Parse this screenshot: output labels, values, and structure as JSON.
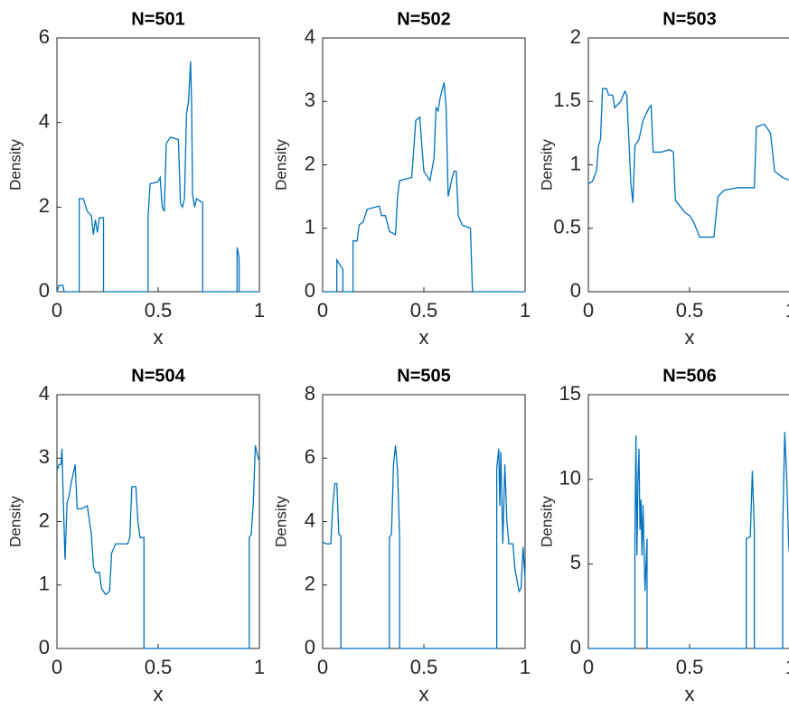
{
  "chart_data": [
    {
      "type": "line",
      "title": "N=501",
      "xlabel": "x",
      "ylabel": "Density",
      "color": "#0072bd",
      "xlim": [
        0,
        1
      ],
      "ylim": [
        0,
        6
      ],
      "xticks": [
        0,
        0.5,
        1
      ],
      "yticks": [
        0,
        2,
        4,
        6
      ],
      "x": [
        0,
        0.01,
        0.03,
        0.035,
        0.11,
        0.11,
        0.13,
        0.15,
        0.17,
        0.18,
        0.19,
        0.2,
        0.21,
        0.23,
        0.23,
        0.45,
        0.45,
        0.46,
        0.5,
        0.51,
        0.52,
        0.53,
        0.54,
        0.56,
        0.6,
        0.61,
        0.62,
        0.63,
        0.64,
        0.65,
        0.66,
        0.665,
        0.67,
        0.68,
        0.69,
        0.72,
        0.72,
        0.89,
        0.89,
        0.9,
        0.9,
        1
      ],
      "values": [
        0,
        0.15,
        0.15,
        0,
        0,
        2.2,
        2.2,
        1.9,
        1.8,
        1.35,
        1.7,
        1.4,
        1.75,
        1.75,
        0,
        0,
        1.75,
        2.55,
        2.6,
        2.7,
        2.0,
        1.9,
        3.5,
        3.65,
        3.6,
        2.1,
        2.0,
        2.2,
        4.2,
        4.5,
        5.45,
        4.5,
        2.3,
        2.0,
        2.2,
        2.1,
        0,
        0,
        1.05,
        0.8,
        0,
        0
      ]
    },
    {
      "type": "line",
      "title": "N=502",
      "xlabel": "x",
      "ylabel": "Density",
      "color": "#0072bd",
      "xlim": [
        0,
        1
      ],
      "ylim": [
        0,
        4
      ],
      "xticks": [
        0,
        0.5,
        1
      ],
      "yticks": [
        0,
        1,
        2,
        3,
        4
      ],
      "x": [
        0,
        0.07,
        0.07,
        0.09,
        0.1,
        0.1,
        0.15,
        0.15,
        0.17,
        0.18,
        0.2,
        0.22,
        0.28,
        0.29,
        0.31,
        0.33,
        0.36,
        0.37,
        0.38,
        0.44,
        0.46,
        0.48,
        0.49,
        0.5,
        0.53,
        0.55,
        0.56,
        0.57,
        0.58,
        0.6,
        0.61,
        0.62,
        0.64,
        0.65,
        0.66,
        0.67,
        0.69,
        0.73,
        0.74,
        1
      ],
      "values": [
        0,
        0,
        0.5,
        0.4,
        0.35,
        0,
        0,
        0.8,
        0.8,
        1.05,
        1.1,
        1.3,
        1.35,
        1.2,
        1.2,
        0.95,
        0.9,
        1.5,
        1.75,
        1.8,
        2.7,
        2.75,
        2.3,
        1.9,
        1.75,
        2.1,
        2.9,
        2.85,
        3.05,
        3.3,
        2.9,
        1.5,
        1.8,
        1.9,
        1.9,
        1.2,
        1.05,
        1.0,
        0,
        0
      ]
    },
    {
      "type": "line",
      "title": "N=503",
      "xlabel": "x",
      "ylabel": "Density",
      "color": "#0072bd",
      "xlim": [
        0,
        1
      ],
      "ylim": [
        0,
        2
      ],
      "xticks": [
        0,
        0.5,
        1
      ],
      "yticks": [
        0,
        0.5,
        1,
        1.5,
        2
      ],
      "x": [
        0,
        0.02,
        0.04,
        0.05,
        0.06,
        0.07,
        0.09,
        0.1,
        0.12,
        0.13,
        0.16,
        0.18,
        0.19,
        0.2,
        0.21,
        0.22,
        0.23,
        0.25,
        0.27,
        0.3,
        0.31,
        0.32,
        0.36,
        0.4,
        0.42,
        0.43,
        0.45,
        0.48,
        0.5,
        0.52,
        0.55,
        0.62,
        0.64,
        0.67,
        0.74,
        0.82,
        0.83,
        0.87,
        0.9,
        0.92,
        0.96,
        0.99
      ],
      "values": [
        0.85,
        0.87,
        0.95,
        1.15,
        1.2,
        1.6,
        1.6,
        1.55,
        1.55,
        1.45,
        1.5,
        1.58,
        1.55,
        1.2,
        0.85,
        0.7,
        1.15,
        1.2,
        1.35,
        1.45,
        1.47,
        1.1,
        1.1,
        1.12,
        1.1,
        0.72,
        0.68,
        0.62,
        0.6,
        0.55,
        0.43,
        0.43,
        0.75,
        0.8,
        0.82,
        0.82,
        1.3,
        1.32,
        1.25,
        0.95,
        0.9,
        0.88
      ]
    },
    {
      "type": "line",
      "title": "N=504",
      "xlabel": "x",
      "ylabel": "Density",
      "color": "#0072bd",
      "xlim": [
        0,
        1
      ],
      "ylim": [
        0,
        4
      ],
      "xticks": [
        0,
        0.5,
        1
      ],
      "yticks": [
        0,
        1,
        2,
        3,
        4
      ],
      "x": [
        0,
        0.01,
        0.02,
        0.025,
        0.03,
        0.04,
        0.05,
        0.06,
        0.07,
        0.09,
        0.1,
        0.12,
        0.15,
        0.17,
        0.18,
        0.19,
        0.21,
        0.22,
        0.24,
        0.26,
        0.27,
        0.29,
        0.35,
        0.36,
        0.37,
        0.39,
        0.4,
        0.41,
        0.43,
        0.43,
        0.95,
        0.95,
        0.96,
        0.97,
        0.98,
        0.99,
        1
      ],
      "values": [
        2.8,
        2.9,
        2.9,
        3.15,
        2.5,
        1.4,
        2.3,
        2.4,
        2.6,
        2.9,
        2.2,
        2.2,
        2.25,
        1.8,
        1.3,
        1.2,
        1.2,
        0.95,
        0.85,
        0.9,
        1.5,
        1.65,
        1.65,
        1.75,
        2.55,
        2.55,
        2.0,
        1.75,
        1.75,
        0,
        0,
        1.75,
        1.8,
        2.3,
        3.2,
        3.05,
        2.95
      ]
    },
    {
      "type": "line",
      "title": "N=505",
      "xlabel": "x",
      "ylabel": "Density",
      "color": "#0072bd",
      "xlim": [
        0,
        1
      ],
      "ylim": [
        0,
        8
      ],
      "xticks": [
        0,
        0.5,
        1
      ],
      "yticks": [
        0,
        2,
        4,
        6,
        8
      ],
      "x": [
        0,
        0.02,
        0.04,
        0.05,
        0.06,
        0.07,
        0.08,
        0.09,
        0.09,
        0.33,
        0.33,
        0.34,
        0.35,
        0.36,
        0.37,
        0.38,
        0.38,
        0.86,
        0.86,
        0.87,
        0.875,
        0.88,
        0.89,
        0.9,
        0.91,
        0.92,
        0.94,
        0.95,
        0.97,
        0.98,
        0.99,
        1
      ],
      "values": [
        3.35,
        3.3,
        3.3,
        4.5,
        5.2,
        5.2,
        3.6,
        3.55,
        0,
        0,
        3.5,
        3.6,
        5.8,
        6.4,
        5.6,
        3.5,
        0,
        0,
        5.7,
        6.3,
        4.5,
        6.2,
        3.3,
        5.8,
        4.0,
        3.3,
        3.3,
        2.5,
        1.8,
        1.9,
        3.2,
        2.2
      ]
    },
    {
      "type": "line",
      "title": "N=506",
      "xlabel": "x",
      "ylabel": "Density",
      "color": "#0072bd",
      "xlim": [
        0,
        1
      ],
      "ylim": [
        0,
        15
      ],
      "xticks": [
        0,
        0.5,
        1
      ],
      "yticks": [
        0,
        5,
        10,
        15
      ],
      "x": [
        0,
        0.23,
        0.23,
        0.235,
        0.24,
        0.245,
        0.25,
        0.255,
        0.26,
        0.265,
        0.27,
        0.28,
        0.29,
        0.29,
        0.78,
        0.78,
        0.8,
        0.81,
        0.82,
        0.82,
        0.96,
        0.96,
        0.97,
        0.98,
        0.99,
        1
      ],
      "values": [
        0,
        0,
        6.5,
        12.6,
        5.5,
        10,
        11.8,
        7,
        8.8,
        5.5,
        8.5,
        3.4,
        6.5,
        0,
        0,
        6.5,
        6.6,
        10.5,
        7,
        0,
        0,
        7,
        12.8,
        10,
        6,
        5
      ]
    }
  ]
}
